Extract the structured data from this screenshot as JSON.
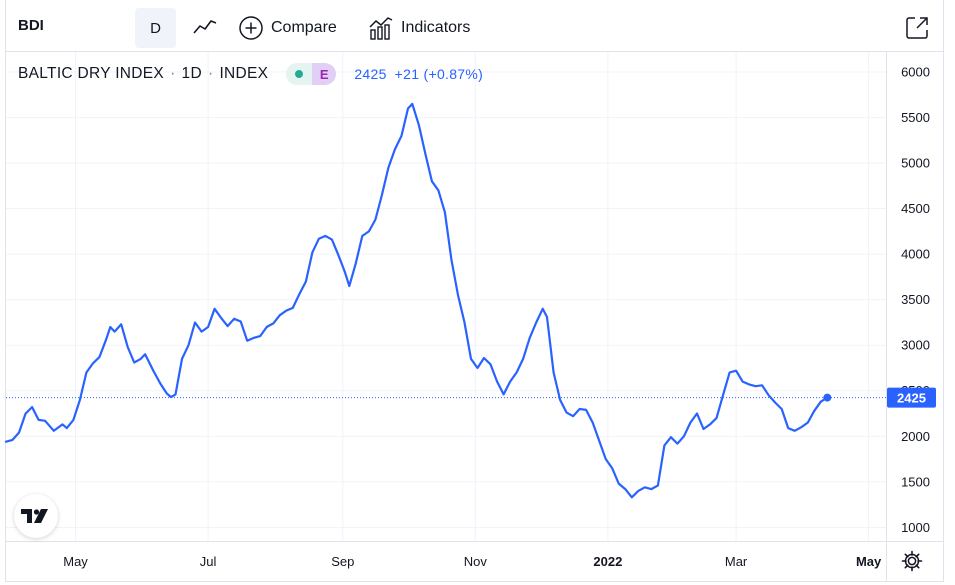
{
  "toolbar": {
    "symbol": "BDI",
    "interval": "D",
    "compare_label": "Compare",
    "indicators_label": "Indicators"
  },
  "legend": {
    "name": "BALTIC DRY INDEX",
    "interval": "1D",
    "exchange": "INDEX",
    "sep": "·",
    "badge": "E",
    "price": "2425",
    "change": "+21 (+0.87%)"
  },
  "colors": {
    "line": "#2962ff",
    "grid": "#f0f3fa",
    "status_dot": "#22ab94",
    "badge": "#9c27b0"
  },
  "chart_data": {
    "type": "line",
    "title": "BALTIC DRY INDEX · 1D · INDEX",
    "xlabel": "",
    "ylabel": "",
    "ylim": [
      850,
      6220
    ],
    "yticks": [
      1000,
      1500,
      2000,
      2500,
      3000,
      3500,
      4000,
      4500,
      5000,
      5500,
      6000
    ],
    "xlim": [
      "2021-03-30",
      "2022-05-09"
    ],
    "xticks": [
      {
        "date": "2021-05-01",
        "label": "May",
        "bold": false
      },
      {
        "date": "2021-07-01",
        "label": "Jul",
        "bold": false
      },
      {
        "date": "2021-09-01",
        "label": "Sep",
        "bold": false
      },
      {
        "date": "2021-11-01",
        "label": "Nov",
        "bold": false
      },
      {
        "date": "2022-01-01",
        "label": "2022",
        "bold": true
      },
      {
        "date": "2022-03-01",
        "label": "Mar",
        "bold": false
      },
      {
        "date": "2022-05-01",
        "label": "May",
        "bold": true
      }
    ],
    "last_value": 2425,
    "last_value_label": "2425",
    "grid": true,
    "series": [
      {
        "points": [
          [
            "2021-03-30",
            1940
          ],
          [
            "2021-04-02",
            1960
          ],
          [
            "2021-04-05",
            2040
          ],
          [
            "2021-04-08",
            2250
          ],
          [
            "2021-04-11",
            2320
          ],
          [
            "2021-04-14",
            2180
          ],
          [
            "2021-04-17",
            2170
          ],
          [
            "2021-04-21",
            2060
          ],
          [
            "2021-04-25",
            2130
          ],
          [
            "2021-04-27",
            2090
          ],
          [
            "2021-04-30",
            2180
          ],
          [
            "2021-05-03",
            2400
          ],
          [
            "2021-05-06",
            2700
          ],
          [
            "2021-05-09",
            2800
          ],
          [
            "2021-05-12",
            2870
          ],
          [
            "2021-05-15",
            3060
          ],
          [
            "2021-05-17",
            3200
          ],
          [
            "2021-05-19",
            3150
          ],
          [
            "2021-05-22",
            3230
          ],
          [
            "2021-05-25",
            2980
          ],
          [
            "2021-05-28",
            2810
          ],
          [
            "2021-05-31",
            2850
          ],
          [
            "2021-06-02",
            2900
          ],
          [
            "2021-06-06",
            2710
          ],
          [
            "2021-06-09",
            2580
          ],
          [
            "2021-06-12",
            2470
          ],
          [
            "2021-06-14",
            2430
          ],
          [
            "2021-06-16",
            2460
          ],
          [
            "2021-06-19",
            2850
          ],
          [
            "2021-06-22",
            3000
          ],
          [
            "2021-06-25",
            3250
          ],
          [
            "2021-06-28",
            3150
          ],
          [
            "2021-07-01",
            3200
          ],
          [
            "2021-07-04",
            3400
          ],
          [
            "2021-07-07",
            3300
          ],
          [
            "2021-07-10",
            3210
          ],
          [
            "2021-07-13",
            3290
          ],
          [
            "2021-07-16",
            3260
          ],
          [
            "2021-07-19",
            3050
          ],
          [
            "2021-07-22",
            3080
          ],
          [
            "2021-07-25",
            3100
          ],
          [
            "2021-07-28",
            3200
          ],
          [
            "2021-07-31",
            3240
          ],
          [
            "2021-08-03",
            3330
          ],
          [
            "2021-08-06",
            3380
          ],
          [
            "2021-08-09",
            3410
          ],
          [
            "2021-08-12",
            3560
          ],
          [
            "2021-08-15",
            3700
          ],
          [
            "2021-08-18",
            4020
          ],
          [
            "2021-08-21",
            4170
          ],
          [
            "2021-08-24",
            4200
          ],
          [
            "2021-08-27",
            4160
          ],
          [
            "2021-08-30",
            3990
          ],
          [
            "2021-09-02",
            3800
          ],
          [
            "2021-09-04",
            3650
          ],
          [
            "2021-09-07",
            3900
          ],
          [
            "2021-09-10",
            4200
          ],
          [
            "2021-09-13",
            4250
          ],
          [
            "2021-09-16",
            4380
          ],
          [
            "2021-09-19",
            4650
          ],
          [
            "2021-09-22",
            4950
          ],
          [
            "2021-09-25",
            5150
          ],
          [
            "2021-09-28",
            5300
          ],
          [
            "2021-10-01",
            5600
          ],
          [
            "2021-10-03",
            5650
          ],
          [
            "2021-10-06",
            5420
          ],
          [
            "2021-10-09",
            5100
          ],
          [
            "2021-10-12",
            4800
          ],
          [
            "2021-10-15",
            4700
          ],
          [
            "2021-10-18",
            4460
          ],
          [
            "2021-10-21",
            3940
          ],
          [
            "2021-10-24",
            3550
          ],
          [
            "2021-10-27",
            3250
          ],
          [
            "2021-10-30",
            2850
          ],
          [
            "2021-11-02",
            2750
          ],
          [
            "2021-11-05",
            2860
          ],
          [
            "2021-11-08",
            2790
          ],
          [
            "2021-11-11",
            2600
          ],
          [
            "2021-11-14",
            2460
          ],
          [
            "2021-11-17",
            2600
          ],
          [
            "2021-11-20",
            2700
          ],
          [
            "2021-11-23",
            2850
          ],
          [
            "2021-11-26",
            3080
          ],
          [
            "2021-11-29",
            3250
          ],
          [
            "2021-12-02",
            3400
          ],
          [
            "2021-12-04",
            3310
          ],
          [
            "2021-12-07",
            2700
          ],
          [
            "2021-12-10",
            2400
          ],
          [
            "2021-12-13",
            2260
          ],
          [
            "2021-12-16",
            2220
          ],
          [
            "2021-12-19",
            2300
          ],
          [
            "2021-12-22",
            2290
          ],
          [
            "2021-12-25",
            2150
          ],
          [
            "2021-12-28",
            1950
          ],
          [
            "2021-12-31",
            1750
          ],
          [
            "2022-01-03",
            1650
          ],
          [
            "2022-01-06",
            1480
          ],
          [
            "2022-01-09",
            1420
          ],
          [
            "2022-01-12",
            1330
          ],
          [
            "2022-01-15",
            1400
          ],
          [
            "2022-01-18",
            1440
          ],
          [
            "2022-01-21",
            1420
          ],
          [
            "2022-01-24",
            1460
          ],
          [
            "2022-01-27",
            1900
          ],
          [
            "2022-01-30",
            1990
          ],
          [
            "2022-02-02",
            1920
          ],
          [
            "2022-02-05",
            2000
          ],
          [
            "2022-02-08",
            2150
          ],
          [
            "2022-02-11",
            2250
          ],
          [
            "2022-02-14",
            2080
          ],
          [
            "2022-02-17",
            2130
          ],
          [
            "2022-02-20",
            2200
          ],
          [
            "2022-02-23",
            2450
          ],
          [
            "2022-02-26",
            2700
          ],
          [
            "2022-03-01",
            2720
          ],
          [
            "2022-03-04",
            2600
          ],
          [
            "2022-03-07",
            2570
          ],
          [
            "2022-03-10",
            2550
          ],
          [
            "2022-03-13",
            2560
          ],
          [
            "2022-03-16",
            2450
          ],
          [
            "2022-03-19",
            2370
          ],
          [
            "2022-03-22",
            2300
          ],
          [
            "2022-03-25",
            2090
          ],
          [
            "2022-03-28",
            2060
          ],
          [
            "2022-03-31",
            2100
          ],
          [
            "2022-04-03",
            2150
          ],
          [
            "2022-04-06",
            2280
          ],
          [
            "2022-04-09",
            2380
          ],
          [
            "2022-04-12",
            2425
          ]
        ]
      }
    ]
  }
}
